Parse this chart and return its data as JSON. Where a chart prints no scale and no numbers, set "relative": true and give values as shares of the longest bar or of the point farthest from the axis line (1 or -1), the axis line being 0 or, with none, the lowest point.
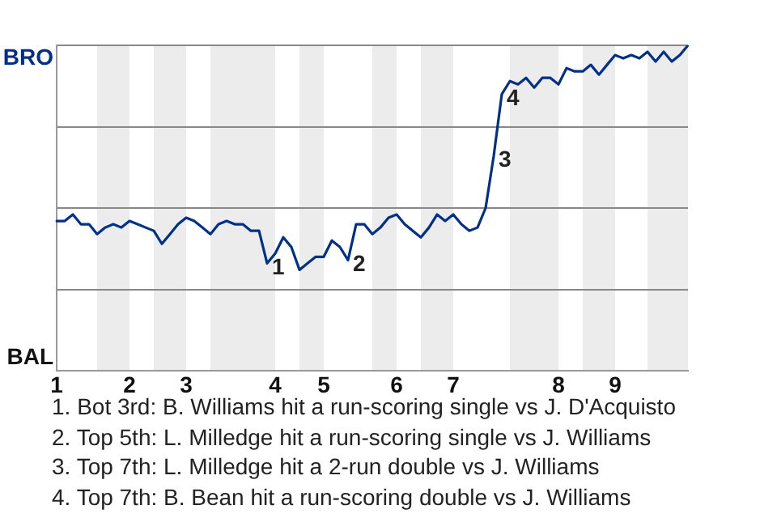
{
  "chart_data": {
    "type": "line",
    "relative": true,
    "categories": [
      "1",
      null,
      null,
      null,
      null,
      null,
      null,
      null,
      null,
      "2",
      null,
      null,
      null,
      null,
      null,
      null,
      "3",
      null,
      null,
      null,
      null,
      null,
      null,
      null,
      null,
      null,
      null,
      "4",
      null,
      null,
      null,
      null,
      null,
      "5",
      null,
      null,
      null,
      null,
      null,
      null,
      null,
      null,
      "6",
      null,
      null,
      null,
      null,
      null,
      null,
      "7",
      null,
      null,
      null,
      null,
      null,
      null,
      null,
      null,
      null,
      null,
      null,
      null,
      "8",
      null,
      null,
      null,
      null,
      null,
      null,
      "9",
      null,
      null,
      null,
      null,
      null,
      null,
      null,
      null,
      null
    ],
    "series": [
      {
        "color": "#003087",
        "values": [
          0.46,
          0.46,
          0.48,
          0.45,
          0.45,
          0.42,
          0.44,
          0.45,
          0.44,
          0.46,
          0.45,
          0.44,
          0.43,
          0.39,
          0.42,
          0.45,
          0.47,
          0.46,
          0.44,
          0.42,
          0.45,
          0.46,
          0.45,
          0.45,
          0.43,
          0.43,
          0.33,
          0.36,
          0.41,
          0.38,
          0.31,
          0.33,
          0.35,
          0.35,
          0.4,
          0.38,
          0.34,
          0.45,
          0.45,
          0.42,
          0.44,
          0.47,
          0.48,
          0.45,
          0.43,
          0.41,
          0.44,
          0.48,
          0.46,
          0.48,
          0.45,
          0.43,
          0.44,
          0.5,
          0.66,
          0.85,
          0.89,
          0.88,
          0.9,
          0.87,
          0.9,
          0.9,
          0.88,
          0.93,
          0.92,
          0.92,
          0.94,
          0.91,
          0.94,
          0.97,
          0.96,
          0.97,
          0.96,
          0.98,
          0.95,
          0.98,
          0.95,
          0.97,
          1
        ]
      }
    ],
    "grid": "y",
    "annotations": [
      "BRO",
      "BAL",
      "1",
      "2",
      "3",
      "4",
      "1. Bot 3rd: B. Williams hit a run-scoring single vs J. D'Acquisto",
      "2. Top 5th: L. Milledge hit a run-scoring single vs J. Williams",
      "3. Top 7th: L. Milledge hit a 2-run double vs J. Williams",
      "4. Top 7th: B. Bean hit a run-scoring double vs J. Williams"
    ],
    "legend": false
  }
}
